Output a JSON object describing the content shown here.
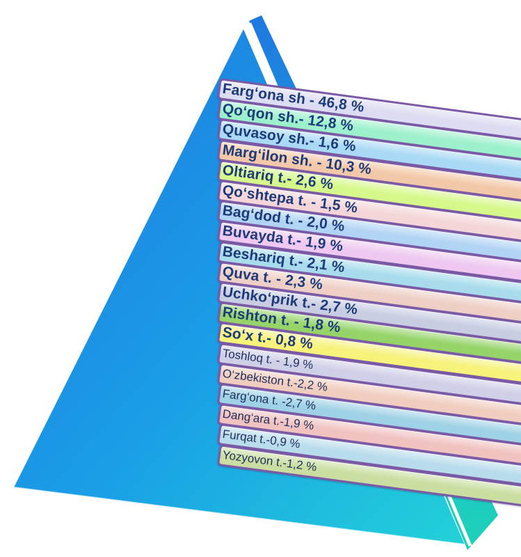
{
  "rows": [
    {
      "label": "Farg‘ona sh - 46,8 %",
      "color": "#dcdcf2",
      "weight": "bold"
    },
    {
      "label": "Qo‘qon sh.- 12,8 %",
      "color": "#9cf0cc",
      "weight": "bold"
    },
    {
      "label": "Quvasoy sh.- 1,6 %",
      "color": "#a9d9f4",
      "weight": "bold"
    },
    {
      "label": "Marg‘ilon sh. - 10,3 %",
      "color": "#f3c8a8",
      "weight": "bold"
    },
    {
      "label": "Oltiariq t.- 2,6 %",
      "color": "#d6f88a",
      "weight": "bold"
    },
    {
      "label": "Qo‘shtepa t. - 1,5 %",
      "color": "#f4d6d8",
      "weight": "bold"
    },
    {
      "label": "Bag‘dod t. - 2,0 %",
      "color": "#b2d4f4",
      "weight": "bold"
    },
    {
      "label": "Buvayda t.- 1,9 %",
      "color": "#eec8f0",
      "weight": "bold"
    },
    {
      "label": "Beshariq t.- 2,1 %",
      "color": "#a8dcec",
      "weight": "bold"
    },
    {
      "label": "Quva t.  - 2,3 %",
      "color": "#eecfc6",
      "weight": "bold"
    },
    {
      "label": "Uchko‘prik t.- 2,7 %",
      "color": "#c8cde2",
      "weight": "bold"
    },
    {
      "label": "Rishton t. - 1,8 %",
      "color": "#96d46a",
      "weight": "bold"
    },
    {
      "label": "So‘x t.- 0,8 %",
      "color": "#f6f27a",
      "weight": "bold"
    },
    {
      "label": "Toshloq t. - 1,9 %",
      "color": "#cfcfe8",
      "weight": "normal"
    },
    {
      "label": "O‘zbekiston t.-2,2 %",
      "color": "#f1cdbf",
      "weight": "normal"
    },
    {
      "label": "Farg‘ona t. -2,7 %",
      "color": "#9fd2e6",
      "weight": "normal"
    },
    {
      "label": "Dang‘ara t.-1,9  %",
      "color": "#f0c2c0",
      "weight": "normal"
    },
    {
      "label": "Furqat t.-0,9 %",
      "color": "#b9dcec",
      "weight": "normal"
    },
    {
      "label": "Yozyovon t.-1,2 %",
      "color": "#c9dea0",
      "weight": "normal"
    }
  ]
}
